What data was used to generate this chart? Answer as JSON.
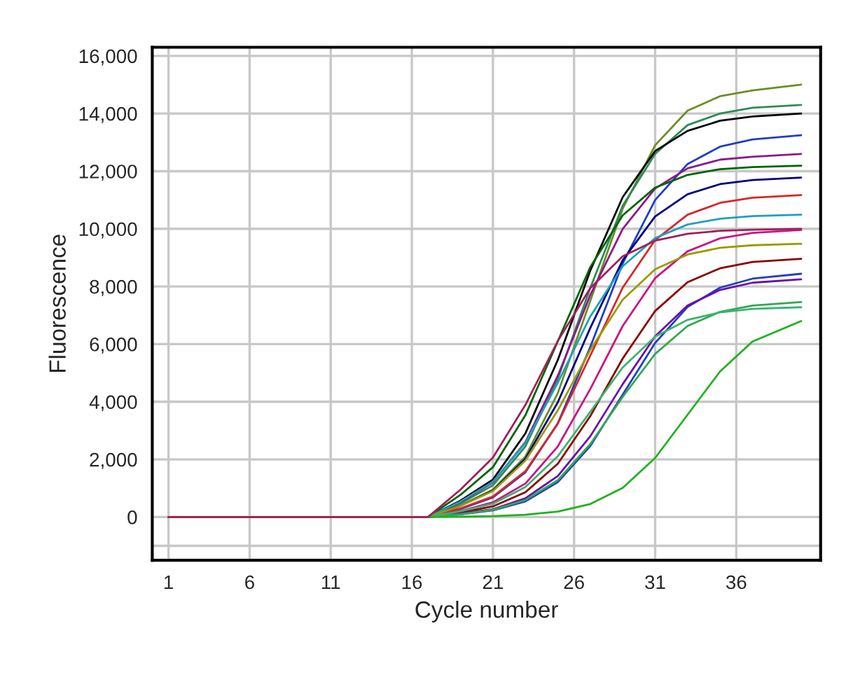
{
  "chart_data": {
    "type": "line",
    "xlabel": "Cycle number",
    "ylabel": "Fluorescence",
    "x": [
      1,
      17,
      19,
      21,
      23,
      25,
      27,
      29,
      31,
      33,
      35,
      37,
      40
    ],
    "series": [
      {
        "color": "#6b8e23",
        "values": [
          0,
          0,
          400,
          950,
          2100,
          4300,
          7500,
          10700,
          12900,
          14100,
          14600,
          14800,
          15000
        ]
      },
      {
        "color": "#2e8b57",
        "values": [
          0,
          0,
          470,
          1100,
          2450,
          4800,
          7950,
          10800,
          12600,
          13600,
          14000,
          14200,
          14300
        ]
      },
      {
        "color": "#000000",
        "values": [
          0,
          0,
          570,
          1300,
          2900,
          5450,
          8550,
          11100,
          12700,
          13400,
          13750,
          13900,
          14000
        ]
      },
      {
        "color": "#1f3fbf",
        "values": [
          0,
          0,
          280,
          680,
          1550,
          3250,
          5900,
          8800,
          11000,
          12250,
          12850,
          13100,
          13250
        ]
      },
      {
        "color": "#8b1a8b",
        "values": [
          0,
          0,
          520,
          1200,
          2600,
          4900,
          7700,
          10000,
          11400,
          12100,
          12400,
          12500,
          12600
        ]
      },
      {
        "color": "#006400",
        "values": [
          0,
          0,
          770,
          1730,
          3530,
          6100,
          8670,
          10470,
          11430,
          11870,
          12070,
          12140,
          12190
        ]
      },
      {
        "color": "#000080",
        "values": [
          0,
          0,
          390,
          920,
          2020,
          3980,
          6560,
          8910,
          10430,
          11200,
          11550,
          11690,
          11780
        ]
      },
      {
        "color": "#d62728",
        "values": [
          0,
          0,
          300,
          710,
          1590,
          3240,
          5600,
          7960,
          9610,
          10490,
          10900,
          11080,
          11170
        ]
      },
      {
        "color": "#1f9fbf",
        "values": [
          0,
          0,
          540,
          1220,
          2570,
          4660,
          6960,
          8700,
          9680,
          10150,
          10350,
          10440,
          10490
        ]
      },
      {
        "color": "#c71585",
        "values": [
          0,
          0,
          210,
          510,
          1160,
          2450,
          4440,
          6630,
          8290,
          9220,
          9670,
          9860,
          9960
        ]
      },
      {
        "color": "#9a9a00",
        "values": [
          0,
          0,
          390,
          900,
          1960,
          3700,
          5800,
          7540,
          8600,
          9110,
          9340,
          9430,
          9480
        ]
      },
      {
        "color": "#8b0000",
        "values": [
          0,
          0,
          150,
          370,
          860,
          1850,
          3500,
          5500,
          7150,
          8150,
          8630,
          8850,
          8960
        ]
      },
      {
        "color": "#2040c0",
        "values": [
          0,
          0,
          90,
          230,
          540,
          1210,
          2460,
          4250,
          6040,
          7290,
          7960,
          8270,
          8440
        ]
      },
      {
        "color": "#6a0dad",
        "values": [
          0,
          0,
          120,
          270,
          650,
          1420,
          2800,
          4610,
          6270,
          7340,
          7880,
          8130,
          8250
        ]
      },
      {
        "color": "#32a852",
        "values": [
          0,
          0,
          100,
          250,
          590,
          1280,
          2530,
          4170,
          5660,
          6630,
          7120,
          7340,
          7460
        ]
      },
      {
        "color": "#3cb371",
        "values": [
          0,
          0,
          200,
          460,
          1040,
          2110,
          3650,
          5190,
          6260,
          6840,
          7100,
          7220,
          7280
        ]
      },
      {
        "color": "#22b022",
        "values": [
          0,
          0,
          10,
          30,
          80,
          190,
          450,
          1010,
          2050,
          3550,
          5050,
          6090,
          6800
        ]
      },
      {
        "color": "#a0205a",
        "values": [
          0,
          0,
          950,
          2060,
          3890,
          6110,
          7940,
          9050,
          9590,
          9830,
          9930,
          9970,
          10000
        ]
      }
    ],
    "xlim": [
      0,
      41.2
    ],
    "xticks": [
      1,
      6,
      11,
      16,
      21,
      26,
      31,
      36
    ],
    "ylim": [
      -1500,
      16300
    ],
    "yticks": [
      {
        "value": -1000,
        "label": null
      },
      0,
      {
        "value": 2000,
        "label": "2,000"
      },
      {
        "value": 4000,
        "label": "4,000"
      },
      {
        "value": 6000,
        "label": "6,000"
      },
      {
        "value": 8000,
        "label": "8,000"
      },
      {
        "value": 10000,
        "label": "10,000"
      },
      {
        "value": 12000,
        "label": "12,000"
      },
      {
        "value": 14000,
        "label": "14,000"
      },
      {
        "value": 16000,
        "label": "16,000"
      }
    ],
    "grid": true,
    "line_style": "solid",
    "marker": "none"
  }
}
